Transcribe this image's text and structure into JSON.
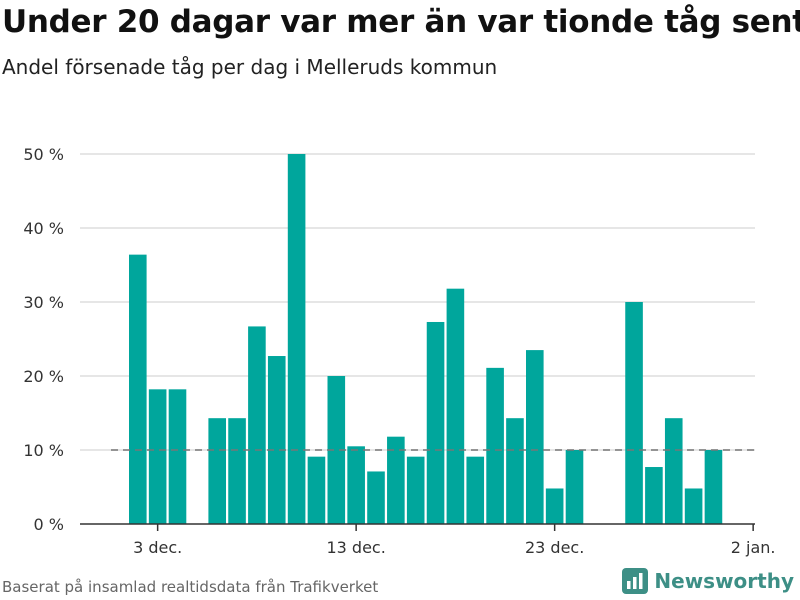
{
  "header": {
    "title": "Under 20 dagar var mer än var tionde tåg sent",
    "subtitle": "Andel försenade tåg per dag i Melleruds kommun"
  },
  "footer": {
    "source": "Baserat på insamlad realtidsdata från Trafikverket",
    "brand": "Newsworthy",
    "brand_icon": "bar-chart-logo-icon"
  },
  "colors": {
    "bar": "#00a69c",
    "grid": "#dddddd",
    "reference_line": "#777777",
    "brand": "#3d8f86"
  },
  "chart_data": {
    "type": "bar",
    "title": "Under 20 dagar var mer än var tionde tåg sent",
    "subtitle": "Andel försenade tåg per dag i Melleruds kommun",
    "xlabel": "",
    "ylabel": "",
    "ylim": [
      0,
      50
    ],
    "y_ticks": [
      0,
      10,
      20,
      30,
      40,
      50
    ],
    "y_tick_labels": [
      "0 %",
      "10 %",
      "20 %",
      "30 %",
      "40 %",
      "50 %"
    ],
    "x_tick_labels": [
      "3 dec.",
      "13 dec.",
      "23 dec.",
      "2 jan."
    ],
    "x_tick_dates": [
      "2019-12-03",
      "2019-12-13",
      "2019-12-23",
      "2020-01-02"
    ],
    "reference_line": {
      "y": 10,
      "style": "dashed"
    },
    "grid": true,
    "legend": "none",
    "x": [
      "2019-12-02",
      "2019-12-03",
      "2019-12-04",
      "2019-12-05",
      "2019-12-06",
      "2019-12-07",
      "2019-12-08",
      "2019-12-09",
      "2019-12-10",
      "2019-12-11",
      "2019-12-12",
      "2019-12-13",
      "2019-12-14",
      "2019-12-15",
      "2019-12-16",
      "2019-12-17",
      "2019-12-18",
      "2019-12-19",
      "2019-12-20",
      "2019-12-21",
      "2019-12-22",
      "2019-12-23",
      "2019-12-24",
      "2019-12-25",
      "2019-12-26",
      "2019-12-27",
      "2019-12-28",
      "2019-12-29",
      "2019-12-30",
      "2019-12-31",
      "2020-01-01"
    ],
    "values": [
      36.4,
      18.2,
      18.2,
      null,
      14.3,
      14.3,
      26.7,
      22.7,
      50.0,
      9.1,
      20.0,
      10.5,
      7.1,
      11.8,
      9.1,
      27.3,
      31.8,
      9.1,
      21.1,
      14.3,
      23.5,
      4.8,
      10.0,
      null,
      null,
      30.0,
      7.7,
      14.3,
      4.8,
      10.0,
      null
    ]
  }
}
